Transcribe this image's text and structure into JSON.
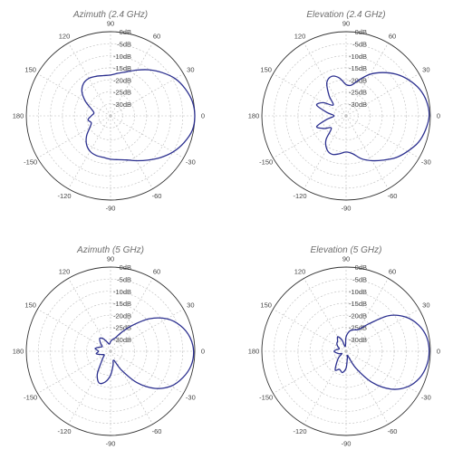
{
  "colors": {
    "pattern_line": "#2b2f8f",
    "outer_ring": "#333333",
    "grid": "#bdbdbd",
    "title_text": "#6e6e6e"
  },
  "chart_data": [
    {
      "type": "polar",
      "title": "Azimuth (2.4 GHz)",
      "radial_unit": "dB",
      "rlim": [
        -35,
        0
      ],
      "ring_labels": [
        "0dB",
        "-5dB",
        "-10dB",
        "-15dB",
        "-20dB",
        "-25dB",
        "-30dB"
      ],
      "angle_labels": [
        "90",
        "60",
        "30",
        "0",
        "-30",
        "-60",
        "-90",
        "-120",
        "-150",
        "180",
        "150",
        "120"
      ],
      "grid": true,
      "series": [
        {
          "angles_deg": [
            0,
            10,
            20,
            30,
            40,
            50,
            60,
            70,
            80,
            90,
            100,
            110,
            120,
            130,
            140,
            150,
            160,
            170,
            180,
            190,
            200,
            210,
            220,
            230,
            240,
            250,
            260,
            270,
            280,
            290,
            300,
            310,
            320,
            330,
            340,
            350
          ],
          "values_db": [
            0,
            -0.5,
            -2,
            -4,
            -7,
            -10,
            -13,
            -15.5,
            -17,
            -18,
            -18,
            -17.5,
            -17,
            -17.5,
            -19.5,
            -23,
            -26.5,
            -28,
            -27,
            -25.5,
            -26.5,
            -25,
            -22,
            -19.5,
            -18,
            -17.5,
            -17.5,
            -17,
            -16.5,
            -15.5,
            -13.5,
            -11,
            -8,
            -5,
            -2.5,
            -0.5
          ]
        }
      ]
    },
    {
      "type": "polar",
      "title": "Elevation (2.4 GHz)",
      "radial_unit": "dB",
      "rlim": [
        -35,
        0
      ],
      "ring_labels": [
        "0dB",
        "-5dB",
        "-10dB",
        "-15dB",
        "-20dB",
        "-25dB",
        "-30dB"
      ],
      "angle_labels": [
        "90",
        "60",
        "30",
        "0",
        "-30",
        "-60",
        "-90",
        "-120",
        "-150",
        "180",
        "150",
        "120"
      ],
      "grid": true,
      "series": [
        {
          "angles_deg": [
            0,
            10,
            20,
            30,
            40,
            50,
            60,
            70,
            80,
            90,
            100,
            110,
            120,
            130,
            140,
            150,
            160,
            170,
            180,
            190,
            200,
            210,
            220,
            230,
            240,
            250,
            260,
            270,
            280,
            290,
            300,
            310,
            320,
            330,
            340,
            350
          ],
          "values_db": [
            -0.5,
            -1,
            -2.5,
            -5,
            -8,
            -11.5,
            -15,
            -19,
            -22,
            -22,
            -19,
            -17.5,
            -19,
            -24,
            -28,
            -24,
            -22,
            -27,
            -30,
            -27,
            -22,
            -24.5,
            -27,
            -22,
            -19,
            -18,
            -19,
            -20,
            -19,
            -16,
            -13.5,
            -11,
            -8,
            -5.5,
            -3,
            -1.5
          ]
        }
      ]
    },
    {
      "type": "polar",
      "title": "Azimuth (5 GHz)",
      "radial_unit": "dB",
      "rlim": [
        -35,
        0
      ],
      "ring_labels": [
        "0dB",
        "-5dB",
        "-10dB",
        "-15dB",
        "-20dB",
        "-25dB",
        "-30dB"
      ],
      "angle_labels": [
        "90",
        "60",
        "30",
        "0",
        "-30",
        "-60",
        "-90",
        "-120",
        "-150",
        "180",
        "150",
        "120"
      ],
      "grid": true,
      "series": [
        {
          "angles_deg": [
            0,
            10,
            20,
            30,
            40,
            50,
            60,
            70,
            80,
            90,
            100,
            110,
            120,
            130,
            140,
            150,
            160,
            170,
            180,
            190,
            200,
            210,
            220,
            230,
            240,
            250,
            260,
            270,
            280,
            290,
            300,
            310,
            320,
            330,
            340,
            350
          ],
          "values_db": [
            -0.5,
            -1.5,
            -4,
            -8,
            -14,
            -21,
            -26,
            -29,
            -30,
            -31,
            -32,
            -31,
            -29,
            -28,
            -29.5,
            -31,
            -30,
            -28.5,
            -30,
            -29,
            -31,
            -32,
            -31,
            -29,
            -24,
            -21,
            -22,
            -25,
            -29,
            -31,
            -26,
            -18,
            -11,
            -6,
            -3,
            -1
          ]
        }
      ]
    },
    {
      "type": "polar",
      "title": "Elevation (5 GHz)",
      "radial_unit": "dB",
      "rlim": [
        -35,
        0
      ],
      "ring_labels": [
        "0dB",
        "-5dB",
        "-10dB",
        "-15dB",
        "-20dB",
        "-25dB",
        "-30dB"
      ],
      "angle_labels": [
        "90",
        "60",
        "30",
        "0",
        "-30",
        "-60",
        "-90",
        "-120",
        "-150",
        "180",
        "150",
        "120"
      ],
      "grid": true,
      "series": [
        {
          "angles_deg": [
            0,
            10,
            20,
            30,
            40,
            50,
            60,
            70,
            80,
            90,
            100,
            110,
            120,
            130,
            140,
            150,
            160,
            170,
            180,
            190,
            200,
            210,
            220,
            230,
            240,
            250,
            260,
            270,
            280,
            290,
            300,
            310,
            320,
            330,
            340,
            350
          ],
          "values_db": [
            -0.5,
            -1,
            -3,
            -6.5,
            -12,
            -20,
            -24.5,
            -25.5,
            -26.5,
            -29,
            -33,
            -30,
            -28,
            -29.5,
            -30,
            -31,
            -32,
            -31,
            -30,
            -31,
            -32,
            -33,
            -31,
            -29,
            -26,
            -27,
            -26,
            -28,
            -32,
            -33,
            -27,
            -18,
            -10.5,
            -5.5,
            -2.5,
            -1
          ]
        }
      ]
    }
  ]
}
